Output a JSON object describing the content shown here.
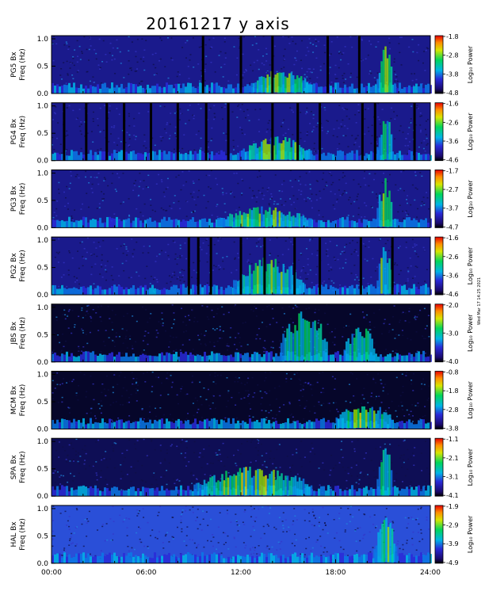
{
  "figure": {
    "title": "20161217 y axis",
    "stamp": "Wed Mar 17 14:25 2021",
    "x_tick_labels": [
      "00:00",
      "06:00",
      "12:00",
      "18:00",
      "24:00"
    ],
    "colorbar_label": "Log₁₀ Power"
  },
  "chart_data": [
    {
      "type": "heatmap",
      "station_label": "PG5 Bx",
      "ylabel": "Freq (Hz)",
      "xlim": [
        0,
        24
      ],
      "ylim": [
        0,
        1.0
      ],
      "y_ticks": [
        "0.0",
        "0.5",
        "1.0"
      ],
      "colorbar_ticks": [
        "-1.8",
        "-2.8",
        "-3.8",
        "-4.8"
      ],
      "colorbar_range": [
        -4.8,
        -1.8
      ],
      "data_gaps_hours": [
        9.6,
        12.0,
        14.0,
        17.5,
        19.5
      ],
      "background": "#1a1a8c",
      "activity": [
        [
          12.5,
          16.5,
          0.45
        ],
        [
          20.6,
          21.6,
          0.9
        ]
      ]
    },
    {
      "type": "heatmap",
      "station_label": "PG4 Bx",
      "ylabel": "Freq (Hz)",
      "xlim": [
        0,
        24
      ],
      "ylim": [
        0,
        1.0
      ],
      "y_ticks": [
        "0.0",
        "0.5",
        "1.0"
      ],
      "colorbar_ticks": [
        "-1.6",
        "-2.6",
        "-3.6",
        "-4.6"
      ],
      "colorbar_range": [
        -4.6,
        -1.6
      ],
      "data_gaps_hours": [
        0.8,
        2.2,
        3.5,
        4.6,
        6.3,
        8.0,
        9.8,
        11.2,
        14.0,
        15.6,
        17.0,
        19.7,
        20.5,
        23.0
      ],
      "background": "#1a1a8c",
      "activity": [
        [
          12.0,
          16.5,
          0.45
        ],
        [
          20.6,
          21.6,
          0.9
        ]
      ]
    },
    {
      "type": "heatmap",
      "station_label": "PG3 Bx",
      "ylabel": "Freq (Hz)",
      "xlim": [
        0,
        24
      ],
      "ylim": [
        0,
        1.0
      ],
      "y_ticks": [
        "0.0",
        "0.5",
        "1.0"
      ],
      "colorbar_ticks": [
        "-1.7",
        "-2.7",
        "-3.7",
        "-4.7"
      ],
      "colorbar_range": [
        -4.7,
        -1.7
      ],
      "data_gaps_hours": [],
      "background": "#1a1a8c",
      "activity": [
        [
          10.5,
          16.5,
          0.4
        ],
        [
          20.6,
          21.6,
          0.95
        ]
      ]
    },
    {
      "type": "heatmap",
      "station_label": "PG2 Bx",
      "ylabel": "Freq (Hz)",
      "xlim": [
        0,
        24
      ],
      "ylim": [
        0,
        1.0
      ],
      "y_ticks": [
        "0.0",
        "0.5",
        "1.0"
      ],
      "colorbar_ticks": [
        "-1.6",
        "-2.6",
        "-3.6",
        "-4.6"
      ],
      "colorbar_range": [
        -4.6,
        -1.6
      ],
      "data_gaps_hours": [
        8.7,
        9.3,
        10.1,
        12.0,
        13.5,
        15.4,
        17.0,
        19.6,
        21.6
      ],
      "background": "#1a1a8c",
      "activity": [
        [
          11.5,
          16.0,
          0.7
        ],
        [
          20.6,
          21.6,
          0.95
        ]
      ]
    },
    {
      "type": "heatmap",
      "station_label": "JBS Bx",
      "ylabel": "Freq (Hz)",
      "xlim": [
        0,
        24
      ],
      "ylim": [
        0,
        1.0
      ],
      "y_ticks": [
        "0.0",
        "0.5",
        "1.0"
      ],
      "colorbar_ticks": [
        "-2.0",
        "-3.0",
        "-4.0"
      ],
      "colorbar_range": [
        -4.0,
        -2.0
      ],
      "data_gaps_hours": [],
      "background": "#06062a",
      "activity": [
        [
          14.5,
          17.5,
          1.0
        ],
        [
          18.5,
          20.5,
          0.7
        ]
      ]
    },
    {
      "type": "heatmap",
      "station_label": "MCM Bx",
      "ylabel": "Freq (Hz)",
      "xlim": [
        0,
        24
      ],
      "ylim": [
        0,
        1.0
      ],
      "y_ticks": [
        "0.0",
        "0.5",
        "1.0"
      ],
      "colorbar_ticks": [
        "-0.8",
        "-1.8",
        "-2.8",
        "-3.8"
      ],
      "colorbar_range": [
        -3.8,
        -0.8
      ],
      "data_gaps_hours": [],
      "background": "#06062a",
      "activity": [
        [
          18.0,
          21.6,
          0.5
        ]
      ]
    },
    {
      "type": "heatmap",
      "station_label": "SPA Bx",
      "ylabel": "Freq (Hz)",
      "xlim": [
        0,
        24
      ],
      "ylim": [
        0,
        1.0
      ],
      "y_ticks": [
        "0.0",
        "0.5",
        "1.0"
      ],
      "colorbar_ticks": [
        "-1.1",
        "-2.1",
        "-3.1",
        "-4.1"
      ],
      "colorbar_range": [
        -4.1,
        -1.1
      ],
      "data_gaps_hours": [],
      "background": "#0e0e55",
      "activity": [
        [
          9.0,
          16.5,
          0.55
        ],
        [
          20.6,
          21.6,
          0.95
        ]
      ]
    },
    {
      "type": "heatmap",
      "station_label": "HAL Bx",
      "ylabel": "Freq (Hz)",
      "xlim": [
        0,
        24
      ],
      "ylim": [
        0,
        1.0
      ],
      "y_ticks": [
        "0.0",
        "0.5",
        "1.0"
      ],
      "colorbar_ticks": [
        "-1.9",
        "-2.9",
        "-3.9",
        "-4.9"
      ],
      "colorbar_range": [
        -4.9,
        -1.9
      ],
      "data_gaps_hours": [],
      "background": "#2a4fd8",
      "activity": [
        [
          20.4,
          21.8,
          0.85
        ]
      ]
    }
  ]
}
